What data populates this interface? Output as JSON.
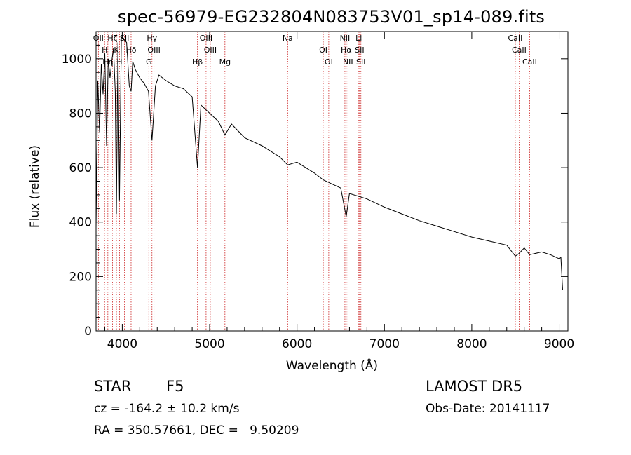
{
  "header": {
    "title": "spec-56979-EG232804N083753V01_sp14-089.fits"
  },
  "info": {
    "object_class": "STAR",
    "subclass": "F5",
    "survey": "LAMOST DR5",
    "cz": "cz = -164.2 ± 10.2 km/s",
    "obs_date": "Obs-Date: 20141117",
    "coords": "RA = 350.57661, DEC =   9.50209"
  },
  "chart_data": {
    "type": "line",
    "xlabel": "Wavelength (Å)",
    "ylabel": "Flux (relative)",
    "xlim": [
      3700,
      9100
    ],
    "ylim": [
      0,
      1100
    ],
    "xticks": [
      4000,
      5000,
      6000,
      7000,
      8000,
      9000
    ],
    "yticks": [
      0,
      200,
      400,
      600,
      800,
      1000
    ],
    "grid": false,
    "line_color": "#000000",
    "marker_color": "#cc2222",
    "spectrum": {
      "x": [
        3700,
        3720,
        3740,
        3760,
        3780,
        3800,
        3820,
        3840,
        3860,
        3880,
        3900,
        3920,
        3933,
        3950,
        3968,
        3990,
        4020,
        4050,
        4080,
        4101,
        4120,
        4150,
        4200,
        4250,
        4300,
        4340,
        4380,
        4420,
        4500,
        4600,
        4700,
        4800,
        4861,
        4900,
        5000,
        5100,
        5175,
        5250,
        5400,
        5600,
        5800,
        5893,
        6000,
        6200,
        6300,
        6400,
        6500,
        6563,
        6600,
        6800,
        7000,
        7200,
        7400,
        7600,
        7800,
        8000,
        8200,
        8400,
        8498,
        8542,
        8600,
        8662,
        8800,
        8900,
        9000,
        9020,
        9040
      ],
      "y": [
        380,
        920,
        730,
        980,
        870,
        1020,
        680,
        1000,
        930,
        990,
        1040,
        880,
        430,
        1060,
        480,
        1080,
        1070,
        1060,
        900,
        880,
        990,
        960,
        930,
        910,
        880,
        700,
        900,
        940,
        920,
        900,
        890,
        860,
        600,
        830,
        800,
        770,
        720,
        760,
        710,
        680,
        640,
        610,
        620,
        580,
        555,
        540,
        525,
        420,
        505,
        485,
        455,
        430,
        405,
        385,
        365,
        345,
        330,
        315,
        275,
        285,
        305,
        280,
        290,
        280,
        265,
        270,
        150
      ]
    },
    "line_markers": [
      {
        "wavelength": 3727,
        "label": "OII"
      },
      {
        "wavelength": 3798,
        "label": "H"
      },
      {
        "wavelength": 3835,
        "label": "Hη"
      },
      {
        "wavelength": 3889,
        "label": "Hζ"
      },
      {
        "wavelength": 3933,
        "label": "K"
      },
      {
        "wavelength": 3968,
        "label": "H"
      },
      {
        "wavelength": 4026,
        "label": "SII"
      },
      {
        "wavelength": 4101,
        "label": "Hδ"
      },
      {
        "wavelength": 4304,
        "label": "G"
      },
      {
        "wavelength": 4340,
        "label": "Hγ"
      },
      {
        "wavelength": 4363,
        "label": "OIII"
      },
      {
        "wavelength": 4861,
        "label": "Hβ"
      },
      {
        "wavelength": 4959,
        "label": "OIII"
      },
      {
        "wavelength": 5007,
        "label": "OIII"
      },
      {
        "wavelength": 5175,
        "label": "Mg"
      },
      {
        "wavelength": 5893,
        "label": "Na"
      },
      {
        "wavelength": 6300,
        "label": "OI"
      },
      {
        "wavelength": 6363,
        "label": "OI"
      },
      {
        "wavelength": 6548,
        "label": "NII"
      },
      {
        "wavelength": 6563,
        "label": "Hα"
      },
      {
        "wavelength": 6583,
        "label": "NII"
      },
      {
        "wavelength": 6707,
        "label": "Li"
      },
      {
        "wavelength": 6716,
        "label": "SII"
      },
      {
        "wavelength": 6731,
        "label": "SII"
      },
      {
        "wavelength": 8498,
        "label": "CaII"
      },
      {
        "wavelength": 8542,
        "label": "CaII"
      },
      {
        "wavelength": 8662,
        "label": "CaII"
      }
    ]
  }
}
